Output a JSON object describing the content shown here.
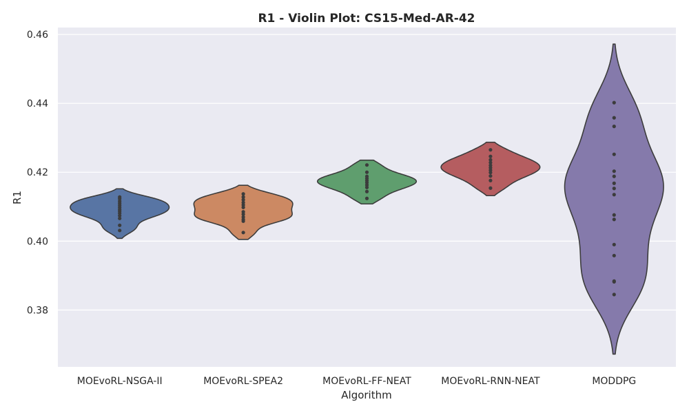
{
  "chart_data": {
    "type": "violin",
    "title": "R1 - Violin Plot: CS15-Med-AR-42",
    "xlabel": "Algorithm",
    "ylabel": "R1",
    "ylim": [
      0.3635,
      0.462
    ],
    "yticks": [
      "0.38",
      "0.40",
      "0.42",
      "0.44",
      "0.46"
    ],
    "grid": true,
    "inner": "points",
    "background": "#eaeaf2",
    "grid_color": "#ffffff",
    "outline_color": "#3c3c3c",
    "point_color": "#3c3c3c",
    "series": [
      {
        "category": "MOEvoRL-NSGA-II",
        "color": "#5875a4",
        "points": [
          0.4128,
          0.4123,
          0.4116,
          0.411,
          0.4104,
          0.4098,
          0.4092,
          0.4087,
          0.4081,
          0.4074,
          0.4066,
          0.4046,
          0.4031
        ],
        "range": [
          0.4008,
          0.4152
        ],
        "mode": 0.4106
      },
      {
        "category": "MOEvoRL-SPEA2",
        "color": "#cc8963",
        "points": [
          0.4137,
          0.4128,
          0.412,
          0.4112,
          0.4105,
          0.4098,
          0.4085,
          0.4078,
          0.407,
          0.4063,
          0.4058,
          0.4025
        ],
        "range": [
          0.4005,
          0.4162
        ],
        "mode": 0.4105
      },
      {
        "category": "MOEvoRL-FF-NEAT",
        "color": "#5f9e6e",
        "points": [
          0.4221,
          0.42,
          0.4188,
          0.4182,
          0.4176,
          0.417,
          0.4163,
          0.4156,
          0.4144,
          0.4124
        ],
        "range": [
          0.4108,
          0.4235
        ],
        "mode": 0.418
      },
      {
        "category": "MOEvoRL-RNN-NEAT",
        "color": "#b55d60",
        "points": [
          0.4265,
          0.4246,
          0.4236,
          0.4228,
          0.422,
          0.4213,
          0.4206,
          0.4199,
          0.4189,
          0.4176,
          0.4154
        ],
        "range": [
          0.4132,
          0.4287
        ],
        "mode": 0.4214
      },
      {
        "category": "MODDPG",
        "color": "#857aab",
        "points": [
          0.4402,
          0.4358,
          0.4333,
          0.4252,
          0.4203,
          0.4188,
          0.4168,
          0.4153,
          0.4135,
          0.4076,
          0.4063,
          0.399,
          0.3958,
          0.3884,
          0.3882,
          0.3845
        ],
        "range": [
          0.3672,
          0.4572
        ],
        "mode": 0.3885
      }
    ]
  }
}
